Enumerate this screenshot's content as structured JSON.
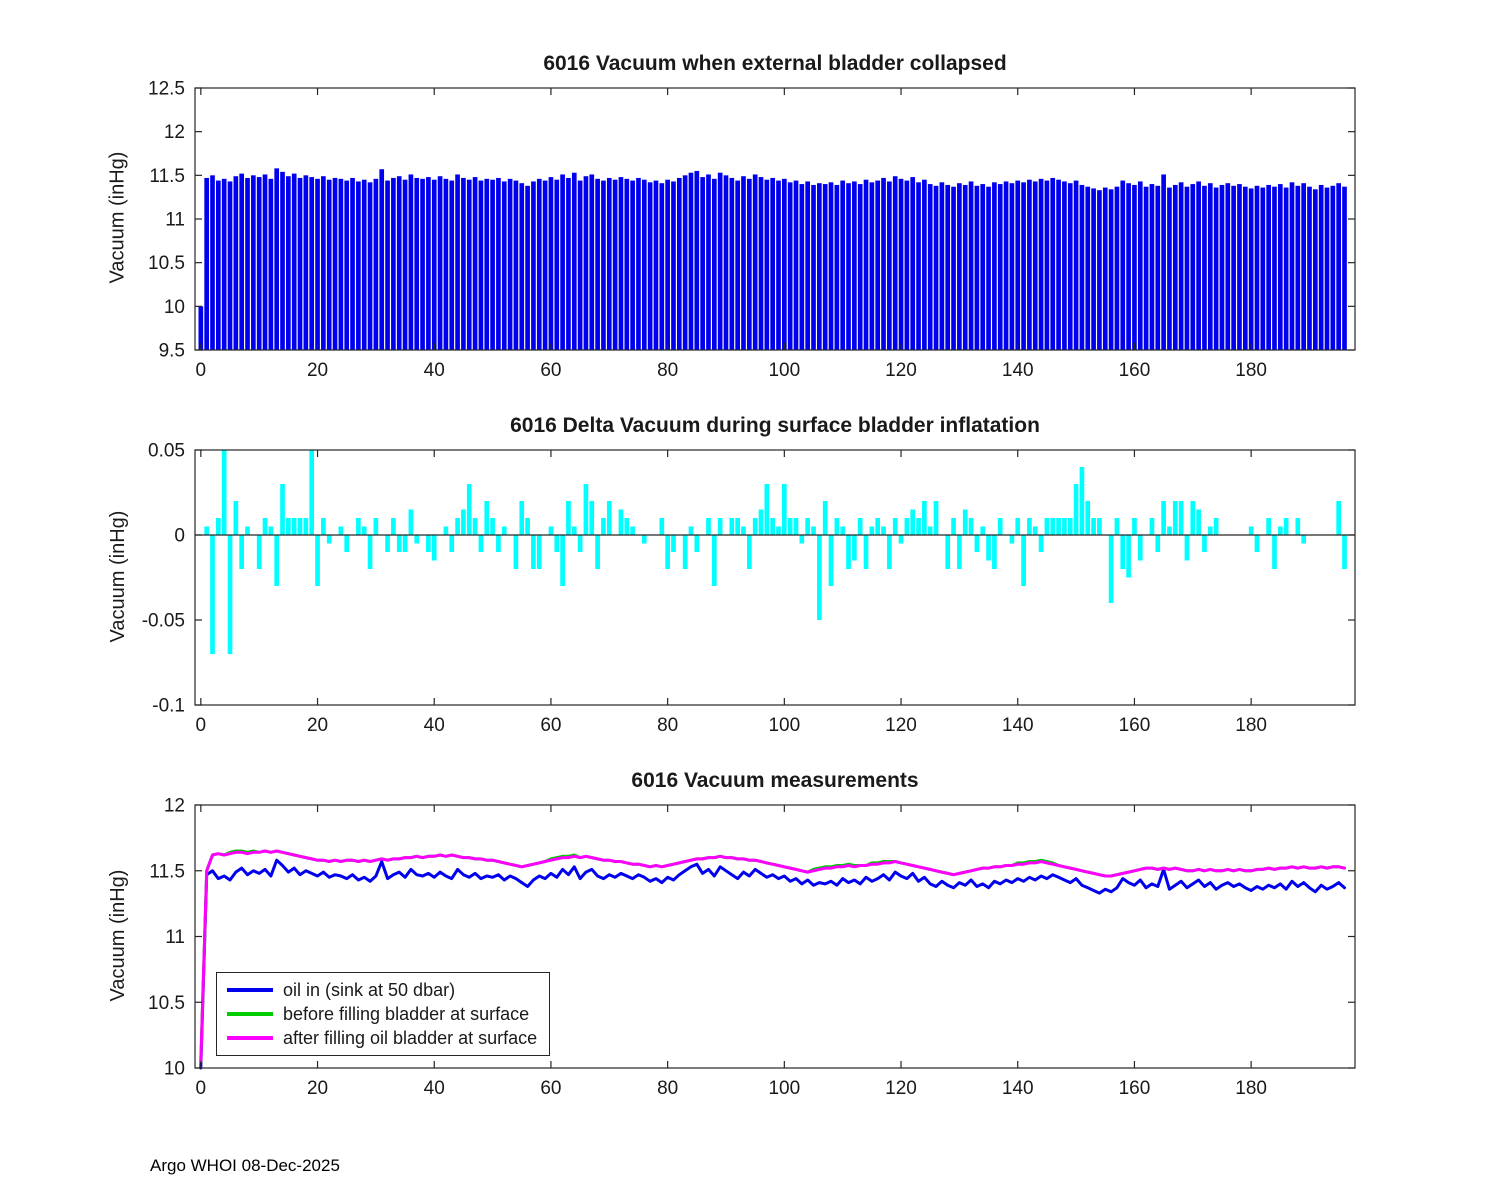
{
  "footer": {
    "text": "Argo WHOI 08-Dec-2025"
  },
  "chart_data": [
    {
      "type": "bar",
      "title": "6016 Vacuum when external bladder collapsed",
      "ylabel": "Vacuum (inHg)",
      "xlabel": "",
      "bar_color": "#0000EE",
      "ylim": [
        9.5,
        12.5
      ],
      "yticks": [
        9.5,
        10,
        10.5,
        11,
        11.5,
        12,
        12.5
      ],
      "xlim": [
        -1,
        197.8
      ],
      "xticks": [
        0,
        20,
        40,
        60,
        80,
        100,
        120,
        140,
        160,
        180
      ],
      "grid": false,
      "values": [
        10.0,
        11.47,
        11.5,
        11.44,
        11.46,
        11.43,
        11.49,
        11.52,
        11.47,
        11.5,
        11.48,
        11.51,
        11.46,
        11.58,
        11.54,
        11.49,
        11.52,
        11.47,
        11.5,
        11.48,
        11.46,
        11.49,
        11.45,
        11.47,
        11.46,
        11.44,
        11.47,
        11.43,
        11.45,
        11.42,
        11.46,
        11.57,
        11.44,
        11.47,
        11.49,
        11.45,
        11.51,
        11.47,
        11.46,
        11.48,
        11.45,
        11.49,
        11.46,
        11.44,
        11.51,
        11.47,
        11.45,
        11.48,
        11.44,
        11.46,
        11.45,
        11.47,
        11.43,
        11.46,
        11.44,
        11.41,
        11.38,
        11.43,
        11.46,
        11.44,
        11.48,
        11.45,
        11.51,
        11.47,
        11.53,
        11.44,
        11.49,
        11.51,
        11.46,
        11.44,
        11.47,
        11.45,
        11.48,
        11.46,
        11.44,
        11.47,
        11.45,
        11.42,
        11.44,
        11.41,
        11.45,
        11.43,
        11.47,
        11.5,
        11.53,
        11.55,
        11.48,
        11.51,
        11.46,
        11.53,
        11.5,
        11.47,
        11.44,
        11.49,
        11.46,
        11.51,
        11.48,
        11.45,
        11.47,
        11.44,
        11.46,
        11.42,
        11.44,
        11.4,
        11.43,
        11.39,
        11.41,
        11.4,
        11.42,
        11.39,
        11.44,
        11.41,
        11.43,
        11.4,
        11.45,
        11.42,
        11.44,
        11.47,
        11.43,
        11.49,
        11.46,
        11.44,
        11.48,
        11.42,
        11.45,
        11.4,
        11.38,
        11.42,
        11.39,
        11.37,
        11.41,
        11.39,
        11.43,
        11.38,
        11.4,
        11.37,
        11.42,
        11.4,
        11.43,
        11.41,
        11.44,
        11.42,
        11.45,
        11.43,
        11.46,
        11.44,
        11.47,
        11.45,
        11.43,
        11.41,
        11.44,
        11.39,
        11.37,
        11.35,
        11.33,
        11.36,
        11.34,
        11.37,
        11.44,
        11.41,
        11.39,
        11.43,
        11.37,
        11.4,
        11.38,
        11.51,
        11.36,
        11.39,
        11.42,
        11.37,
        11.4,
        11.43,
        11.38,
        11.41,
        11.36,
        11.39,
        11.41,
        11.38,
        11.4,
        11.37,
        11.35,
        11.38,
        11.36,
        11.39,
        11.37,
        11.4,
        11.36,
        11.42,
        11.38,
        11.41,
        11.37,
        11.34,
        11.39,
        11.36,
        11.38,
        11.41,
        11.37
      ]
    },
    {
      "type": "bar",
      "title": "6016 Delta Vacuum during surface bladder inflatation",
      "ylabel": "Vacuum (inHg)",
      "xlabel": "",
      "bar_color": "#00FFFF",
      "ylim": [
        -0.1,
        0.05
      ],
      "yticks": [
        -0.1,
        -0.05,
        0,
        0.05
      ],
      "xlim": [
        -1,
        197.8
      ],
      "xticks": [
        0,
        20,
        40,
        60,
        80,
        100,
        120,
        140,
        160,
        180
      ],
      "grid": false,
      "values": [
        0,
        0.005,
        -0.07,
        0.01,
        0.05,
        -0.07,
        0.02,
        -0.02,
        0.005,
        0,
        -0.02,
        0.01,
        0.005,
        -0.03,
        0.03,
        0.01,
        0.01,
        0.01,
        0.01,
        0.05,
        -0.03,
        0.01,
        -0.005,
        0,
        0.005,
        -0.01,
        0,
        0.01,
        0.005,
        -0.02,
        0.01,
        0,
        -0.01,
        0.01,
        -0.01,
        -0.01,
        0.015,
        -0.005,
        0,
        -0.01,
        -0.015,
        0,
        0.005,
        -0.01,
        0.01,
        0.015,
        0.03,
        0.01,
        -0.01,
        0.02,
        0.01,
        -0.01,
        0.005,
        0,
        -0.02,
        0.02,
        0.01,
        -0.02,
        -0.02,
        0,
        0.005,
        -0.01,
        -0.03,
        0.02,
        0.005,
        -0.01,
        0.03,
        0.02,
        -0.02,
        0.01,
        0.02,
        0,
        0.015,
        0.01,
        0.005,
        0,
        -0.005,
        0,
        0,
        0.01,
        -0.02,
        -0.01,
        0,
        -0.02,
        0.005,
        -0.01,
        0,
        0.01,
        -0.03,
        0.01,
        0,
        0.01,
        0.01,
        0.005,
        -0.02,
        0.01,
        0.015,
        0.03,
        0.01,
        0.005,
        0.03,
        0.01,
        0.01,
        -0.005,
        0.01,
        0.005,
        -0.05,
        0.02,
        -0.03,
        0.01,
        0.005,
        -0.02,
        -0.015,
        0.01,
        -0.02,
        0.005,
        0.01,
        0.005,
        -0.02,
        0.01,
        -0.005,
        0.01,
        0.015,
        0.01,
        0.02,
        0.005,
        0.02,
        0,
        -0.02,
        0.01,
        -0.02,
        0.015,
        0.01,
        -0.01,
        0.005,
        -0.015,
        -0.02,
        0.01,
        0,
        -0.005,
        0.01,
        -0.03,
        0.01,
        0.005,
        -0.01,
        0.01,
        0.01,
        0.01,
        0.01,
        0.01,
        0.03,
        0.04,
        0.02,
        0.01,
        0.01,
        0,
        -0.04,
        0.01,
        -0.02,
        -0.025,
        0.01,
        -0.015,
        0,
        0.01,
        -0.01,
        0.02,
        0.005,
        0.02,
        0.02,
        -0.015,
        0.02,
        0.015,
        -0.01,
        0.005,
        0.01,
        0,
        0,
        0,
        0,
        0,
        0.005,
        -0.01,
        0,
        0.01,
        -0.02,
        0.005,
        0.01,
        0,
        0.01,
        -0.005,
        0,
        0,
        0,
        0,
        0,
        0.02,
        -0.02
      ]
    },
    {
      "type": "line",
      "title": "6016 Vacuum measurements",
      "ylabel": "Vacuum (inHg)",
      "xlabel": "",
      "ylim": [
        10,
        12
      ],
      "yticks": [
        10,
        10.5,
        11,
        11.5,
        12
      ],
      "xlim": [
        -1,
        197.8
      ],
      "xticks": [
        0,
        20,
        40,
        60,
        80,
        100,
        120,
        140,
        160,
        180
      ],
      "grid": false,
      "legend_position": "bottom-left",
      "series": [
        {
          "name": "oil in (sink at 50 dbar)",
          "color": "#0000EE",
          "values": [
            10.0,
            11.47,
            11.5,
            11.44,
            11.46,
            11.43,
            11.49,
            11.52,
            11.47,
            11.5,
            11.48,
            11.51,
            11.46,
            11.58,
            11.54,
            11.49,
            11.52,
            11.47,
            11.5,
            11.48,
            11.46,
            11.49,
            11.45,
            11.47,
            11.46,
            11.44,
            11.47,
            11.43,
            11.45,
            11.42,
            11.46,
            11.57,
            11.44,
            11.47,
            11.49,
            11.45,
            11.51,
            11.47,
            11.46,
            11.48,
            11.45,
            11.49,
            11.46,
            11.44,
            11.51,
            11.47,
            11.45,
            11.48,
            11.44,
            11.46,
            11.45,
            11.47,
            11.43,
            11.46,
            11.44,
            11.41,
            11.38,
            11.43,
            11.46,
            11.44,
            11.48,
            11.45,
            11.51,
            11.47,
            11.53,
            11.44,
            11.49,
            11.51,
            11.46,
            11.44,
            11.47,
            11.45,
            11.48,
            11.46,
            11.44,
            11.47,
            11.45,
            11.42,
            11.44,
            11.41,
            11.45,
            11.43,
            11.47,
            11.5,
            11.53,
            11.55,
            11.48,
            11.51,
            11.46,
            11.53,
            11.5,
            11.47,
            11.44,
            11.49,
            11.46,
            11.51,
            11.48,
            11.45,
            11.47,
            11.44,
            11.46,
            11.42,
            11.44,
            11.4,
            11.43,
            11.39,
            11.41,
            11.4,
            11.42,
            11.39,
            11.44,
            11.41,
            11.43,
            11.4,
            11.45,
            11.42,
            11.44,
            11.47,
            11.43,
            11.49,
            11.46,
            11.44,
            11.48,
            11.42,
            11.45,
            11.4,
            11.38,
            11.42,
            11.39,
            11.37,
            11.41,
            11.39,
            11.43,
            11.38,
            11.4,
            11.37,
            11.42,
            11.4,
            11.43,
            11.41,
            11.44,
            11.42,
            11.45,
            11.43,
            11.46,
            11.44,
            11.47,
            11.45,
            11.43,
            11.41,
            11.44,
            11.39,
            11.37,
            11.35,
            11.33,
            11.36,
            11.34,
            11.37,
            11.44,
            11.41,
            11.39,
            11.43,
            11.37,
            11.4,
            11.38,
            11.51,
            11.36,
            11.39,
            11.42,
            11.37,
            11.4,
            11.43,
            11.38,
            11.41,
            11.36,
            11.39,
            11.41,
            11.38,
            11.4,
            11.37,
            11.35,
            11.38,
            11.36,
            11.39,
            11.37,
            11.4,
            11.36,
            11.42,
            11.38,
            11.41,
            11.37,
            11.34,
            11.39,
            11.36,
            11.38,
            11.41,
            11.37
          ]
        },
        {
          "name": "before filling bladder at surface",
          "color": "#00CC00",
          "values": [
            10.05,
            11.5,
            11.62,
            11.63,
            11.62,
            11.64,
            11.65,
            11.65,
            11.64,
            11.65,
            11.64,
            11.65,
            11.64,
            11.65,
            11.64,
            11.63,
            11.62,
            11.61,
            11.6,
            11.59,
            11.58,
            11.58,
            11.57,
            11.58,
            11.57,
            11.58,
            11.58,
            11.57,
            11.58,
            11.57,
            11.58,
            11.59,
            11.58,
            11.59,
            11.59,
            11.6,
            11.6,
            11.61,
            11.6,
            11.61,
            11.61,
            11.62,
            11.61,
            11.62,
            11.61,
            11.6,
            11.6,
            11.59,
            11.59,
            11.58,
            11.58,
            11.57,
            11.56,
            11.55,
            11.54,
            11.53,
            11.54,
            11.55,
            11.56,
            11.57,
            11.59,
            11.6,
            11.61,
            11.61,
            11.62,
            11.6,
            11.61,
            11.6,
            11.59,
            11.58,
            11.58,
            11.57,
            11.57,
            11.56,
            11.55,
            11.55,
            11.54,
            11.53,
            11.54,
            11.53,
            11.54,
            11.55,
            11.56,
            11.57,
            11.58,
            11.59,
            11.59,
            11.6,
            11.6,
            11.61,
            11.6,
            11.6,
            11.59,
            11.59,
            11.58,
            11.58,
            11.57,
            11.56,
            11.55,
            11.54,
            11.53,
            11.52,
            11.51,
            11.5,
            11.49,
            11.51,
            11.52,
            11.53,
            11.53,
            11.54,
            11.54,
            11.55,
            11.54,
            11.54,
            11.54,
            11.56,
            11.56,
            11.57,
            11.57,
            11.57,
            11.56,
            11.55,
            11.54,
            11.53,
            11.52,
            11.51,
            11.5,
            11.49,
            11.48,
            11.47,
            11.48,
            11.49,
            11.5,
            11.51,
            11.52,
            11.52,
            11.53,
            11.53,
            11.54,
            11.54,
            11.56,
            11.56,
            11.57,
            11.57,
            11.58,
            11.57,
            11.56,
            11.54,
            11.53,
            11.52,
            11.51,
            11.5,
            11.49,
            11.48,
            11.47,
            11.46,
            11.46,
            11.47,
            11.48,
            11.49,
            11.5,
            11.51,
            11.52,
            11.52,
            11.51,
            11.52,
            11.51,
            11.52,
            11.51,
            11.5,
            11.5,
            11.51,
            11.5,
            11.51,
            11.5,
            11.5,
            11.51,
            11.5,
            11.51,
            11.5,
            11.5,
            11.51,
            11.51,
            11.52,
            11.51,
            11.52,
            11.52,
            11.53,
            11.52,
            11.53,
            11.52,
            11.52,
            11.53,
            11.52,
            11.53,
            11.53,
            11.52
          ]
        },
        {
          "name": "after filling oil bladder at surface",
          "color": "#FF00FF",
          "values": [
            10.05,
            11.5,
            11.62,
            11.63,
            11.62,
            11.63,
            11.64,
            11.64,
            11.63,
            11.64,
            11.64,
            11.65,
            11.64,
            11.65,
            11.64,
            11.63,
            11.62,
            11.61,
            11.6,
            11.59,
            11.58,
            11.58,
            11.57,
            11.58,
            11.57,
            11.58,
            11.58,
            11.57,
            11.58,
            11.57,
            11.58,
            11.59,
            11.58,
            11.59,
            11.59,
            11.6,
            11.6,
            11.61,
            11.6,
            11.61,
            11.61,
            11.62,
            11.61,
            11.62,
            11.61,
            11.6,
            11.6,
            11.59,
            11.59,
            11.58,
            11.58,
            11.57,
            11.56,
            11.55,
            11.54,
            11.53,
            11.54,
            11.55,
            11.56,
            11.57,
            11.58,
            11.59,
            11.6,
            11.6,
            11.61,
            11.6,
            11.61,
            11.6,
            11.59,
            11.58,
            11.58,
            11.57,
            11.57,
            11.56,
            11.55,
            11.55,
            11.54,
            11.53,
            11.54,
            11.53,
            11.54,
            11.55,
            11.56,
            11.57,
            11.58,
            11.59,
            11.59,
            11.6,
            11.6,
            11.61,
            11.6,
            11.6,
            11.59,
            11.59,
            11.58,
            11.58,
            11.57,
            11.56,
            11.55,
            11.54,
            11.53,
            11.52,
            11.51,
            11.5,
            11.49,
            11.5,
            11.51,
            11.52,
            11.52,
            11.53,
            11.53,
            11.54,
            11.53,
            11.54,
            11.54,
            11.55,
            11.55,
            11.56,
            11.56,
            11.57,
            11.56,
            11.55,
            11.54,
            11.53,
            11.52,
            11.51,
            11.5,
            11.49,
            11.48,
            11.47,
            11.48,
            11.49,
            11.5,
            11.51,
            11.52,
            11.52,
            11.53,
            11.53,
            11.54,
            11.54,
            11.55,
            11.55,
            11.56,
            11.56,
            11.57,
            11.56,
            11.55,
            11.54,
            11.53,
            11.52,
            11.51,
            11.5,
            11.49,
            11.48,
            11.47,
            11.46,
            11.46,
            11.47,
            11.48,
            11.49,
            11.5,
            11.51,
            11.52,
            11.52,
            11.51,
            11.52,
            11.51,
            11.52,
            11.51,
            11.5,
            11.5,
            11.51,
            11.5,
            11.51,
            11.5,
            11.5,
            11.51,
            11.5,
            11.51,
            11.5,
            11.5,
            11.51,
            11.51,
            11.52,
            11.51,
            11.52,
            11.52,
            11.53,
            11.52,
            11.53,
            11.52,
            11.52,
            11.53,
            11.52,
            11.53,
            11.53,
            11.52
          ]
        }
      ]
    }
  ]
}
